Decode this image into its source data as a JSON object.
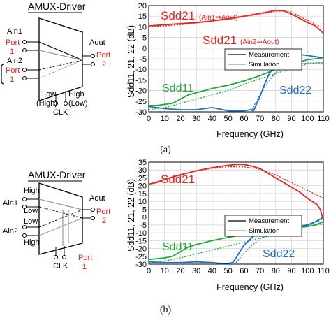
{
  "captions": [
    "(a)",
    "(b)"
  ],
  "colors": {
    "sdd21": "#e8261f",
    "sdd11": "#22a83a",
    "sdd22": "#1f6fc4",
    "measurement": "#000000",
    "simulation": "#9a9a9a",
    "port": "#e8261f"
  },
  "diagrams": [
    {
      "title": "AMUX-Driver",
      "ain1": "Ain1",
      "ain2": "Ain2",
      "aout": "Aout",
      "port1_line1": "Port",
      "port1_line2": "1",
      "port1b_line1": "Port",
      "port1b_line2": "1",
      "port2_line1": "Port",
      "port2_line2": "2",
      "low_label": "Low",
      "low_paren": "(High)",
      "high_label": "High",
      "high_paren": "(Low)",
      "clk": "CLK"
    },
    {
      "title": "AMUX-Driver",
      "ain1": "Ain1",
      "ain2": "Ain2",
      "aout": "Aout",
      "input_levels": [
        "High",
        "Low",
        "Low",
        "High"
      ],
      "port2_line1": "Port",
      "port2_line2": "2",
      "clk": "CLK",
      "port1_line1": "Port",
      "port1_line2": "1"
    }
  ],
  "chart_data": [
    {
      "type": "line",
      "xlabel": "Frequency (GHz)",
      "ylabel": "Sdd11, 21, 22 (dB)",
      "xlim": [
        0,
        110
      ],
      "ylim": [
        -30,
        20
      ],
      "xticks": [
        0,
        10,
        20,
        30,
        40,
        50,
        60,
        70,
        80,
        90,
        100,
        110
      ],
      "yticks": [
        -30,
        -25,
        -20,
        -15,
        -10,
        -5,
        0,
        5,
        10,
        15,
        20
      ],
      "grid": true,
      "legend": {
        "position": "right",
        "entries": [
          "Measurement",
          "Simulation"
        ]
      },
      "annotations": {
        "sdd21_a": "Sdd21",
        "sdd21_a_sub": "(Ain1⇒Aout)",
        "sdd21_b": "Sdd21",
        "sdd21_b_sub": "(Ain2⇒Aout)",
        "sdd11": "Sdd11",
        "sdd22": "Sdd22"
      },
      "series": [
        {
          "name": "Sdd21",
          "style": "measurement",
          "x": [
            0,
            5,
            10,
            20,
            30,
            40,
            50,
            60,
            70,
            75,
            80,
            85,
            90,
            95,
            100,
            105,
            110
          ],
          "y": [
            10.5,
            10.7,
            11,
            11.5,
            12,
            12.8,
            13.8,
            15,
            16.3,
            17,
            17.8,
            17.5,
            16,
            14,
            12,
            10.5,
            7
          ]
        },
        {
          "name": "Sdd21",
          "style": "simulation",
          "x": [
            0,
            10,
            20,
            30,
            40,
            50,
            60,
            70,
            80,
            85,
            90,
            100,
            110
          ],
          "y": [
            10,
            10.5,
            11,
            11.8,
            12.6,
            13.6,
            14.8,
            16,
            17.2,
            17.5,
            17,
            13,
            9.5
          ]
        },
        {
          "name": "Sdd11",
          "style": "measurement",
          "x": [
            0,
            5,
            10,
            15,
            20,
            25,
            30,
            40,
            50,
            60,
            70,
            80,
            90,
            100,
            110
          ],
          "y": [
            -27,
            -27,
            -26.5,
            -26,
            -24,
            -22,
            -21,
            -19,
            -17.5,
            -15.5,
            -13,
            -10,
            -7.5,
            -5.5,
            -4.5
          ]
        },
        {
          "name": "Sdd11",
          "style": "simulation",
          "x": [
            0,
            10,
            20,
            30,
            40,
            50,
            60,
            70,
            80,
            90,
            100,
            110
          ],
          "y": [
            -29,
            -28,
            -26,
            -24,
            -22,
            -20,
            -17,
            -14.5,
            -12,
            -9.5,
            -7.5,
            -6.5
          ]
        },
        {
          "name": "Sdd22",
          "style": "measurement",
          "x": [
            0,
            10,
            20,
            30,
            40,
            50,
            60,
            64,
            66,
            70,
            73,
            76,
            80,
            85,
            90,
            95,
            100,
            105,
            110
          ],
          "y": [
            -27.5,
            -28.5,
            -29,
            -29,
            -28,
            -29.5,
            -29.5,
            -29,
            -29.5,
            -23,
            -17,
            -12,
            -8,
            -5,
            -4,
            -3,
            -3.5,
            -4,
            -4.5
          ]
        },
        {
          "name": "Sdd22",
          "style": "simulation",
          "x": [
            65,
            70,
            75,
            80,
            85,
            90,
            95,
            100,
            105,
            110
          ],
          "y": [
            -29,
            -22,
            -16,
            -11.5,
            -9,
            -8,
            -7.5,
            -7,
            -7,
            -7
          ]
        }
      ]
    },
    {
      "type": "line",
      "xlabel": "Frequency (GHz)",
      "ylabel": "Sdd11, 21, 22 (dB)",
      "xlim": [
        0,
        110
      ],
      "ylim": [
        -30,
        35
      ],
      "xticks": [
        0,
        10,
        20,
        30,
        40,
        50,
        60,
        70,
        80,
        90,
        100,
        110
      ],
      "yticks": [
        -30,
        -25,
        -20,
        -15,
        -10,
        -5,
        0,
        5,
        10,
        15,
        20,
        25,
        30,
        35
      ],
      "grid": true,
      "legend": {
        "position": "right",
        "entries": [
          "Measurement",
          "Simulation"
        ]
      },
      "annotations": {
        "sdd21": "Sdd21",
        "sdd11": "Sdd11",
        "sdd22": "Sdd22"
      },
      "series": [
        {
          "name": "Sdd21",
          "style": "measurement",
          "x": [
            0,
            5,
            10,
            20,
            30,
            40,
            50,
            55,
            60,
            65,
            70,
            75,
            80,
            85,
            90,
            95,
            100,
            103,
            106,
            108,
            110
          ],
          "y": [
            21,
            22,
            24,
            27,
            29.5,
            31.5,
            33,
            33.5,
            33.5,
            32.5,
            31,
            28,
            25,
            22,
            19,
            16,
            12,
            10,
            8,
            5,
            -2
          ]
        },
        {
          "name": "Sdd21",
          "style": "simulation",
          "x": [
            0,
            10,
            20,
            30,
            40,
            50,
            60,
            70,
            80,
            90,
            100,
            110
          ],
          "y": [
            21,
            24,
            27,
            29.5,
            31,
            32,
            32,
            30.5,
            27,
            22,
            17,
            12
          ]
        },
        {
          "name": "Sdd11",
          "style": "measurement",
          "x": [
            0,
            5,
            10,
            15,
            20,
            25,
            30,
            40,
            50,
            60,
            70,
            80,
            90,
            100,
            105,
            110
          ],
          "y": [
            -27,
            -26.5,
            -26,
            -25,
            -22,
            -19,
            -17.5,
            -15,
            -13,
            -11,
            -9.5,
            -8,
            -7,
            -6,
            -5,
            -3
          ]
        },
        {
          "name": "Sdd11",
          "style": "simulation",
          "x": [
            0,
            10,
            20,
            30,
            40,
            50,
            60,
            70,
            80,
            90,
            100,
            110
          ],
          "y": [
            -29.5,
            -28,
            -26,
            -23.5,
            -21,
            -18.5,
            -16,
            -13.5,
            -11,
            -8.5,
            -6,
            -4.5
          ]
        },
        {
          "name": "Sdd22",
          "style": "measurement",
          "x": [
            0,
            10,
            20,
            30,
            40,
            45,
            50,
            53,
            55,
            58,
            60,
            65,
            70,
            75,
            80,
            90,
            100,
            105,
            110
          ],
          "y": [
            -28.5,
            -29,
            -29,
            -28.5,
            -29,
            -29.5,
            -29.5,
            -29,
            -26,
            -21,
            -18,
            -13,
            -9,
            -7,
            -6,
            -6.5,
            -5,
            -3,
            0
          ]
        },
        {
          "name": "Sdd22",
          "style": "simulation",
          "x": [
            55,
            60,
            65,
            70,
            75,
            80,
            85,
            90,
            95,
            100,
            105,
            110
          ],
          "y": [
            -29,
            -23,
            -18,
            -14,
            -11,
            -9.5,
            -8.5,
            -7.5,
            -6.5,
            -5.5,
            -3.5,
            -1
          ]
        }
      ]
    }
  ]
}
